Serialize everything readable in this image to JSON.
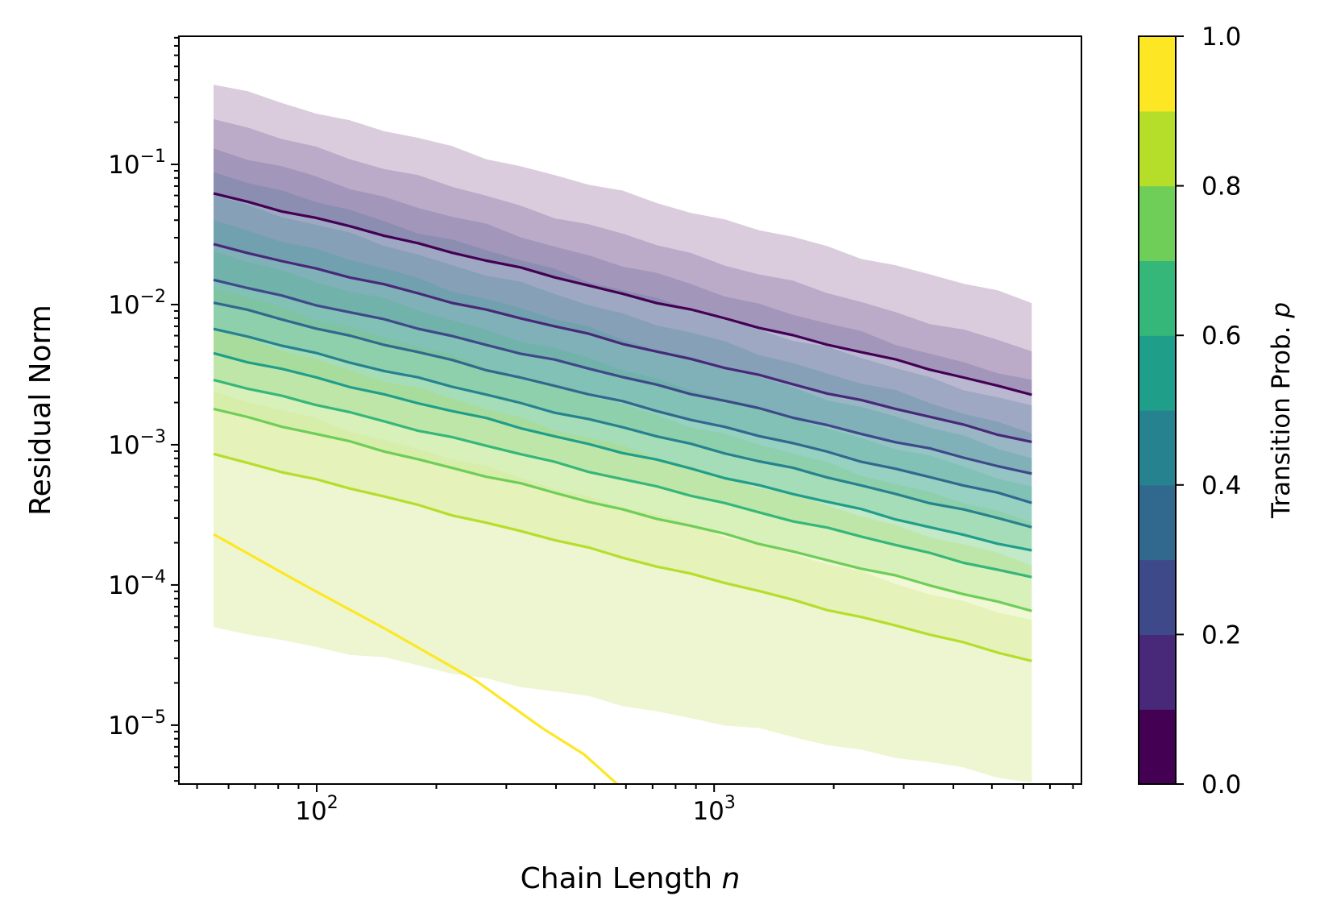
{
  "chart_data": {
    "type": "line",
    "xlabel": "Chain Length ",
    "xlabel_var": "n",
    "ylabel": "Residual Norm",
    "x_scale": "log",
    "y_scale": "log",
    "xlim": [
      45,
      8400
    ],
    "ylim": [
      3.8e-06,
      0.82
    ],
    "x_tick_labels": [
      {
        "base": "10",
        "exp": "2",
        "value": 100
      },
      {
        "base": "10",
        "exp": "3",
        "value": 1000
      }
    ],
    "y_tick_labels": [
      {
        "base": "10",
        "exp": "−1",
        "value": 0.1
      },
      {
        "base": "10",
        "exp": "−2",
        "value": 0.01
      },
      {
        "base": "10",
        "exp": "−3",
        "value": 0.001
      },
      {
        "base": "10",
        "exp": "−4",
        "value": 0.0001
      },
      {
        "base": "10",
        "exp": "−5",
        "value": 1e-05
      }
    ],
    "legend": "none",
    "grid": false,
    "x": [
      55,
      6300
    ],
    "band_colors": [
      "#440154",
      "#482878",
      "#3e4989",
      "#31688e",
      "#26828e",
      "#1f9e89",
      "#35b779",
      "#6ece58",
      "#b5de2b",
      "#d7ec9a"
    ],
    "bands": [
      {
        "low": [
          0.062,
          0.0023
        ],
        "high": [
          0.37,
          0.0105
        ]
      },
      {
        "low": [
          0.027,
          0.00105
        ],
        "high": [
          0.21,
          0.0047
        ]
      },
      {
        "low": [
          0.015,
          0.00062
        ],
        "high": [
          0.13,
          0.0028
        ]
      },
      {
        "low": [
          0.0103,
          0.00039
        ],
        "high": [
          0.088,
          0.00185
        ]
      },
      {
        "low": [
          0.0067,
          0.00026
        ],
        "high": [
          0.06,
          0.00123
        ]
      },
      {
        "low": [
          0.0045,
          0.000173
        ],
        "high": [
          0.04,
          0.00082
        ]
      },
      {
        "low": [
          0.0029,
          0.000112
        ],
        "high": [
          0.024,
          0.0005
        ]
      },
      {
        "low": [
          0.0018,
          6.6e-05
        ],
        "high": [
          0.013,
          0.00028
        ]
      },
      {
        "low": [
          0.00086,
          2.9e-05
        ],
        "high": [
          0.0065,
          0.00014
        ]
      },
      {
        "low": [
          5e-05,
          3.9e-06
        ],
        "high": [
          0.0024,
          5.5e-05
        ]
      }
    ],
    "series": [
      {
        "color": "#440154",
        "x": [
          55,
          6300
        ],
        "y": [
          0.062,
          0.0023
        ]
      },
      {
        "color": "#482878",
        "x": [
          55,
          6300
        ],
        "y": [
          0.027,
          0.00105
        ]
      },
      {
        "color": "#3e4989",
        "x": [
          55,
          6300
        ],
        "y": [
          0.015,
          0.00062
        ]
      },
      {
        "color": "#31688e",
        "x": [
          55,
          6300
        ],
        "y": [
          0.0103,
          0.00039
        ]
      },
      {
        "color": "#26828e",
        "x": [
          55,
          6300
        ],
        "y": [
          0.0067,
          0.00026
        ]
      },
      {
        "color": "#1f9e89",
        "x": [
          55,
          6300
        ],
        "y": [
          0.0045,
          0.000173
        ]
      },
      {
        "color": "#35b779",
        "x": [
          55,
          6300
        ],
        "y": [
          0.0029,
          0.000112
        ]
      },
      {
        "color": "#6ece58",
        "x": [
          55,
          6300
        ],
        "y": [
          0.0018,
          6.6e-05
        ]
      },
      {
        "color": "#b5de2b",
        "x": [
          55,
          6300
        ],
        "y": [
          0.00086,
          2.9e-05
        ]
      },
      {
        "color": "#fde725",
        "x": [
          55,
          90,
          150,
          250,
          370,
          470,
          570
        ],
        "y": [
          0.00023,
          0.000105,
          4.8e-05,
          2.1e-05,
          9.5e-06,
          6.2e-06,
          3.8e-06
        ]
      }
    ],
    "colorbar": {
      "label": "Transition Prob. ",
      "label_var": "p",
      "range": [
        0,
        1
      ],
      "tick_values": [
        0,
        0.2,
        0.4,
        0.6,
        0.8,
        1
      ],
      "tick_labels": [
        "0.0",
        "0.2",
        "0.4",
        "0.6",
        "0.8",
        "1.0"
      ],
      "segment_colors": [
        "#440154",
        "#482878",
        "#3e4989",
        "#31688e",
        "#26828e",
        "#1f9e89",
        "#35b779",
        "#6ece58",
        "#b5de2b",
        "#fde725"
      ]
    }
  }
}
